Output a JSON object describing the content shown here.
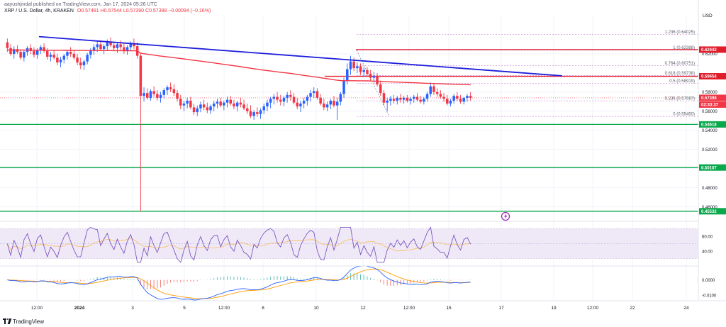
{
  "header": {
    "publisher": "aayushjindal published on TradingView.com, Jan 17, 2024 05:26 UTC",
    "symbol": "XRP / U.S. Dollar, 4h, KRAKEN",
    "ohlc": "O0.57481 H0.57544 L0.57390 C0.57398 −0.00094 (−0.16%)"
  },
  "footer": {
    "brand": "TradingView"
  },
  "colors": {
    "up": "#2962ff",
    "down": "#f23645",
    "ma": "#f23645",
    "trend": "#1e1edc",
    "support": "#08a84b",
    "resistance": "#e11d2a",
    "fib": "#9c27b0",
    "rsi": "#7e57c2",
    "rsi_band": "#ede7f6",
    "macd": "#2962ff",
    "signal": "#ff9800"
  },
  "chart_data": {
    "type": "candlestick",
    "price_axis": {
      "currency": "USD",
      "ticks": [
        "0.62000",
        "0.58000",
        "0.56000",
        "0.54000",
        "0.52000",
        "0.50000",
        "0.48000",
        "0.46000"
      ],
      "ylim": [
        0.45,
        0.66
      ]
    },
    "time_axis": {
      "ticks": [
        "12:00",
        "2024",
        "3",
        "5",
        "12:00",
        "8",
        "10",
        "12",
        "12:00",
        "15",
        "17",
        "19",
        "12:00",
        "22",
        "24"
      ]
    },
    "price_labels": [
      {
        "text": "0.62442",
        "value": 0.62442,
        "kind": "resistance"
      },
      {
        "text": "0.59654",
        "value": 0.59654,
        "kind": "resistance"
      },
      {
        "text": "0.57398",
        "value": 0.57398,
        "kind": "last"
      },
      {
        "text": "02:33:37",
        "value": 0.5705,
        "kind": "countdown"
      },
      {
        "text": "0.54618",
        "value": 0.54618,
        "kind": "support"
      },
      {
        "text": "0.50107",
        "value": 0.50107,
        "kind": "support"
      },
      {
        "text": "0.45532",
        "value": 0.45532,
        "kind": "support"
      }
    ],
    "fib_levels": [
      {
        "text": "1.236 (0.64025)",
        "value": 0.64025
      },
      {
        "text": "1 (0.62388)",
        "value": 0.62388
      },
      {
        "text": "0.764 (0.60751)",
        "value": 0.60751
      },
      {
        "text": "0.618 (0.59738)",
        "value": 0.59738
      },
      {
        "text": "0.5 (0.58919)",
        "value": 0.58919
      },
      {
        "text": "0.236 (0.57087)",
        "value": 0.57087
      },
      {
        "text": "0 (0.55450)",
        "value": 0.5545
      }
    ],
    "trendline": {
      "from": {
        "bar": 10,
        "price": 0.638
      },
      "to": {
        "bar": 167,
        "price": 0.597
      }
    },
    "candles": [
      [
        0.632,
        0.636,
        0.622,
        0.626
      ],
      [
        0.626,
        0.63,
        0.618,
        0.62
      ],
      [
        0.62,
        0.628,
        0.615,
        0.625
      ],
      [
        0.625,
        0.629,
        0.62,
        0.622
      ],
      [
        0.622,
        0.625,
        0.614,
        0.616
      ],
      [
        0.616,
        0.624,
        0.612,
        0.622
      ],
      [
        0.622,
        0.628,
        0.618,
        0.626
      ],
      [
        0.626,
        0.63,
        0.62,
        0.623
      ],
      [
        0.623,
        0.627,
        0.616,
        0.619
      ],
      [
        0.619,
        0.626,
        0.615,
        0.624
      ],
      [
        0.624,
        0.629,
        0.62,
        0.627
      ],
      [
        0.627,
        0.631,
        0.621,
        0.623
      ],
      [
        0.623,
        0.626,
        0.614,
        0.617
      ],
      [
        0.617,
        0.622,
        0.612,
        0.619
      ],
      [
        0.619,
        0.624,
        0.614,
        0.616
      ],
      [
        0.616,
        0.62,
        0.608,
        0.611
      ],
      [
        0.611,
        0.617,
        0.606,
        0.614
      ],
      [
        0.614,
        0.62,
        0.61,
        0.618
      ],
      [
        0.618,
        0.624,
        0.614,
        0.622
      ],
      [
        0.622,
        0.627,
        0.617,
        0.62
      ],
      [
        0.62,
        0.624,
        0.614,
        0.616
      ],
      [
        0.616,
        0.62,
        0.608,
        0.611
      ],
      [
        0.611,
        0.616,
        0.604,
        0.608
      ],
      [
        0.608,
        0.614,
        0.603,
        0.612
      ],
      [
        0.612,
        0.621,
        0.609,
        0.619
      ],
      [
        0.619,
        0.626,
        0.615,
        0.624
      ],
      [
        0.624,
        0.63,
        0.619,
        0.627
      ],
      [
        0.627,
        0.633,
        0.622,
        0.63
      ],
      [
        0.63,
        0.634,
        0.623,
        0.625
      ],
      [
        0.625,
        0.63,
        0.62,
        0.628
      ],
      [
        0.628,
        0.635,
        0.624,
        0.632
      ],
      [
        0.632,
        0.637,
        0.627,
        0.629
      ],
      [
        0.629,
        0.633,
        0.623,
        0.626
      ],
      [
        0.626,
        0.632,
        0.621,
        0.63
      ],
      [
        0.63,
        0.634,
        0.624,
        0.627
      ],
      [
        0.627,
        0.631,
        0.62,
        0.623
      ],
      [
        0.623,
        0.629,
        0.619,
        0.627
      ],
      [
        0.627,
        0.633,
        0.623,
        0.631
      ],
      [
        0.631,
        0.636,
        0.625,
        0.628
      ],
      [
        0.628,
        0.632,
        0.615,
        0.618
      ],
      [
        0.618,
        0.621,
        0.455,
        0.576
      ],
      [
        0.576,
        0.585,
        0.57,
        0.579
      ],
      [
        0.579,
        0.584,
        0.572,
        0.574
      ],
      [
        0.574,
        0.583,
        0.571,
        0.581
      ],
      [
        0.581,
        0.586,
        0.575,
        0.578
      ],
      [
        0.578,
        0.582,
        0.571,
        0.574
      ],
      [
        0.574,
        0.58,
        0.569,
        0.577
      ],
      [
        0.577,
        0.584,
        0.573,
        0.582
      ],
      [
        0.582,
        0.587,
        0.577,
        0.585
      ],
      [
        0.585,
        0.59,
        0.58,
        0.583
      ],
      [
        0.583,
        0.588,
        0.576,
        0.579
      ],
      [
        0.579,
        0.582,
        0.57,
        0.573
      ],
      [
        0.573,
        0.577,
        0.562,
        0.566
      ],
      [
        0.566,
        0.571,
        0.56,
        0.568
      ],
      [
        0.568,
        0.574,
        0.563,
        0.571
      ],
      [
        0.571,
        0.575,
        0.562,
        0.564
      ],
      [
        0.564,
        0.568,
        0.556,
        0.559
      ],
      [
        0.559,
        0.566,
        0.555,
        0.563
      ],
      [
        0.563,
        0.57,
        0.559,
        0.567
      ],
      [
        0.567,
        0.572,
        0.561,
        0.564
      ],
      [
        0.564,
        0.569,
        0.558,
        0.561
      ],
      [
        0.561,
        0.567,
        0.557,
        0.565
      ],
      [
        0.565,
        0.571,
        0.56,
        0.568
      ],
      [
        0.568,
        0.573,
        0.563,
        0.57
      ],
      [
        0.57,
        0.574,
        0.564,
        0.566
      ],
      [
        0.566,
        0.571,
        0.561,
        0.569
      ],
      [
        0.569,
        0.575,
        0.564,
        0.572
      ],
      [
        0.572,
        0.576,
        0.566,
        0.568
      ],
      [
        0.568,
        0.572,
        0.562,
        0.565
      ],
      [
        0.565,
        0.571,
        0.56,
        0.569
      ],
      [
        0.569,
        0.574,
        0.564,
        0.567
      ],
      [
        0.567,
        0.572,
        0.561,
        0.563
      ],
      [
        0.563,
        0.568,
        0.557,
        0.56
      ],
      [
        0.56,
        0.566,
        0.553,
        0.555
      ],
      [
        0.555,
        0.561,
        0.551,
        0.559
      ],
      [
        0.559,
        0.564,
        0.554,
        0.557
      ],
      [
        0.557,
        0.563,
        0.552,
        0.561
      ],
      [
        0.561,
        0.568,
        0.557,
        0.565
      ],
      [
        0.565,
        0.572,
        0.56,
        0.569
      ],
      [
        0.569,
        0.575,
        0.563,
        0.573
      ],
      [
        0.573,
        0.578,
        0.567,
        0.575
      ],
      [
        0.575,
        0.58,
        0.569,
        0.572
      ],
      [
        0.572,
        0.577,
        0.566,
        0.57
      ],
      [
        0.57,
        0.576,
        0.565,
        0.574
      ],
      [
        0.574,
        0.58,
        0.569,
        0.577
      ],
      [
        0.577,
        0.582,
        0.571,
        0.575
      ],
      [
        0.575,
        0.579,
        0.567,
        0.569
      ],
      [
        0.569,
        0.574,
        0.562,
        0.565
      ],
      [
        0.565,
        0.571,
        0.559,
        0.568
      ],
      [
        0.568,
        0.574,
        0.563,
        0.571
      ],
      [
        0.571,
        0.577,
        0.566,
        0.575
      ],
      [
        0.575,
        0.582,
        0.57,
        0.579
      ],
      [
        0.579,
        0.585,
        0.574,
        0.581
      ],
      [
        0.581,
        0.584,
        0.572,
        0.574
      ],
      [
        0.574,
        0.578,
        0.566,
        0.568
      ],
      [
        0.568,
        0.573,
        0.561,
        0.564
      ],
      [
        0.564,
        0.57,
        0.56,
        0.567
      ],
      [
        0.567,
        0.573,
        0.562,
        0.571
      ],
      [
        0.571,
        0.576,
        0.564,
        0.566
      ],
      [
        0.566,
        0.574,
        0.551,
        0.57
      ],
      [
        0.57,
        0.58,
        0.566,
        0.578
      ],
      [
        0.578,
        0.595,
        0.574,
        0.592
      ],
      [
        0.592,
        0.61,
        0.588,
        0.604
      ],
      [
        0.604,
        0.618,
        0.598,
        0.612
      ],
      [
        0.612,
        0.616,
        0.602,
        0.605
      ],
      [
        0.605,
        0.611,
        0.6,
        0.607
      ],
      [
        0.607,
        0.61,
        0.598,
        0.601
      ],
      [
        0.601,
        0.606,
        0.596,
        0.603
      ],
      [
        0.603,
        0.606,
        0.596,
        0.599
      ],
      [
        0.599,
        0.603,
        0.592,
        0.595
      ],
      [
        0.595,
        0.601,
        0.59,
        0.597
      ],
      [
        0.597,
        0.6,
        0.586,
        0.588
      ],
      [
        0.588,
        0.592,
        0.576,
        0.579
      ],
      [
        0.579,
        0.582,
        0.566,
        0.569
      ],
      [
        0.569,
        0.574,
        0.56,
        0.571
      ],
      [
        0.571,
        0.576,
        0.566,
        0.573
      ],
      [
        0.573,
        0.577,
        0.568,
        0.571
      ],
      [
        0.571,
        0.576,
        0.567,
        0.574
      ],
      [
        0.574,
        0.578,
        0.569,
        0.572
      ],
      [
        0.572,
        0.576,
        0.568,
        0.574
      ],
      [
        0.574,
        0.577,
        0.569,
        0.571
      ],
      [
        0.571,
        0.575,
        0.567,
        0.573
      ],
      [
        0.573,
        0.577,
        0.569,
        0.575
      ],
      [
        0.575,
        0.579,
        0.57,
        0.572
      ],
      [
        0.572,
        0.576,
        0.568,
        0.57
      ],
      [
        0.57,
        0.575,
        0.567,
        0.573
      ],
      [
        0.573,
        0.58,
        0.57,
        0.578
      ],
      [
        0.578,
        0.59,
        0.575,
        0.586
      ],
      [
        0.586,
        0.589,
        0.577,
        0.58
      ],
      [
        0.58,
        0.584,
        0.575,
        0.578
      ],
      [
        0.578,
        0.582,
        0.573,
        0.575
      ],
      [
        0.575,
        0.579,
        0.57,
        0.573
      ],
      [
        0.573,
        0.577,
        0.566,
        0.568
      ],
      [
        0.568,
        0.573,
        0.565,
        0.571
      ],
      [
        0.571,
        0.578,
        0.568,
        0.576
      ],
      [
        0.576,
        0.58,
        0.571,
        0.573
      ],
      [
        0.573,
        0.577,
        0.568,
        0.57
      ],
      [
        0.57,
        0.575,
        0.567,
        0.574
      ],
      [
        0.574,
        0.578,
        0.57,
        0.576
      ],
      [
        0.576,
        0.58,
        0.571,
        0.574
      ]
    ]
  },
  "rsi": {
    "ticks": [
      "60.00",
      "40.00"
    ],
    "ylim": [
      20,
      80
    ],
    "band": [
      30,
      70
    ]
  },
  "macd": {
    "ticks": [
      "0.0000",
      "-0.0100"
    ],
    "ylim": [
      -0.0135,
      0.009
    ]
  }
}
